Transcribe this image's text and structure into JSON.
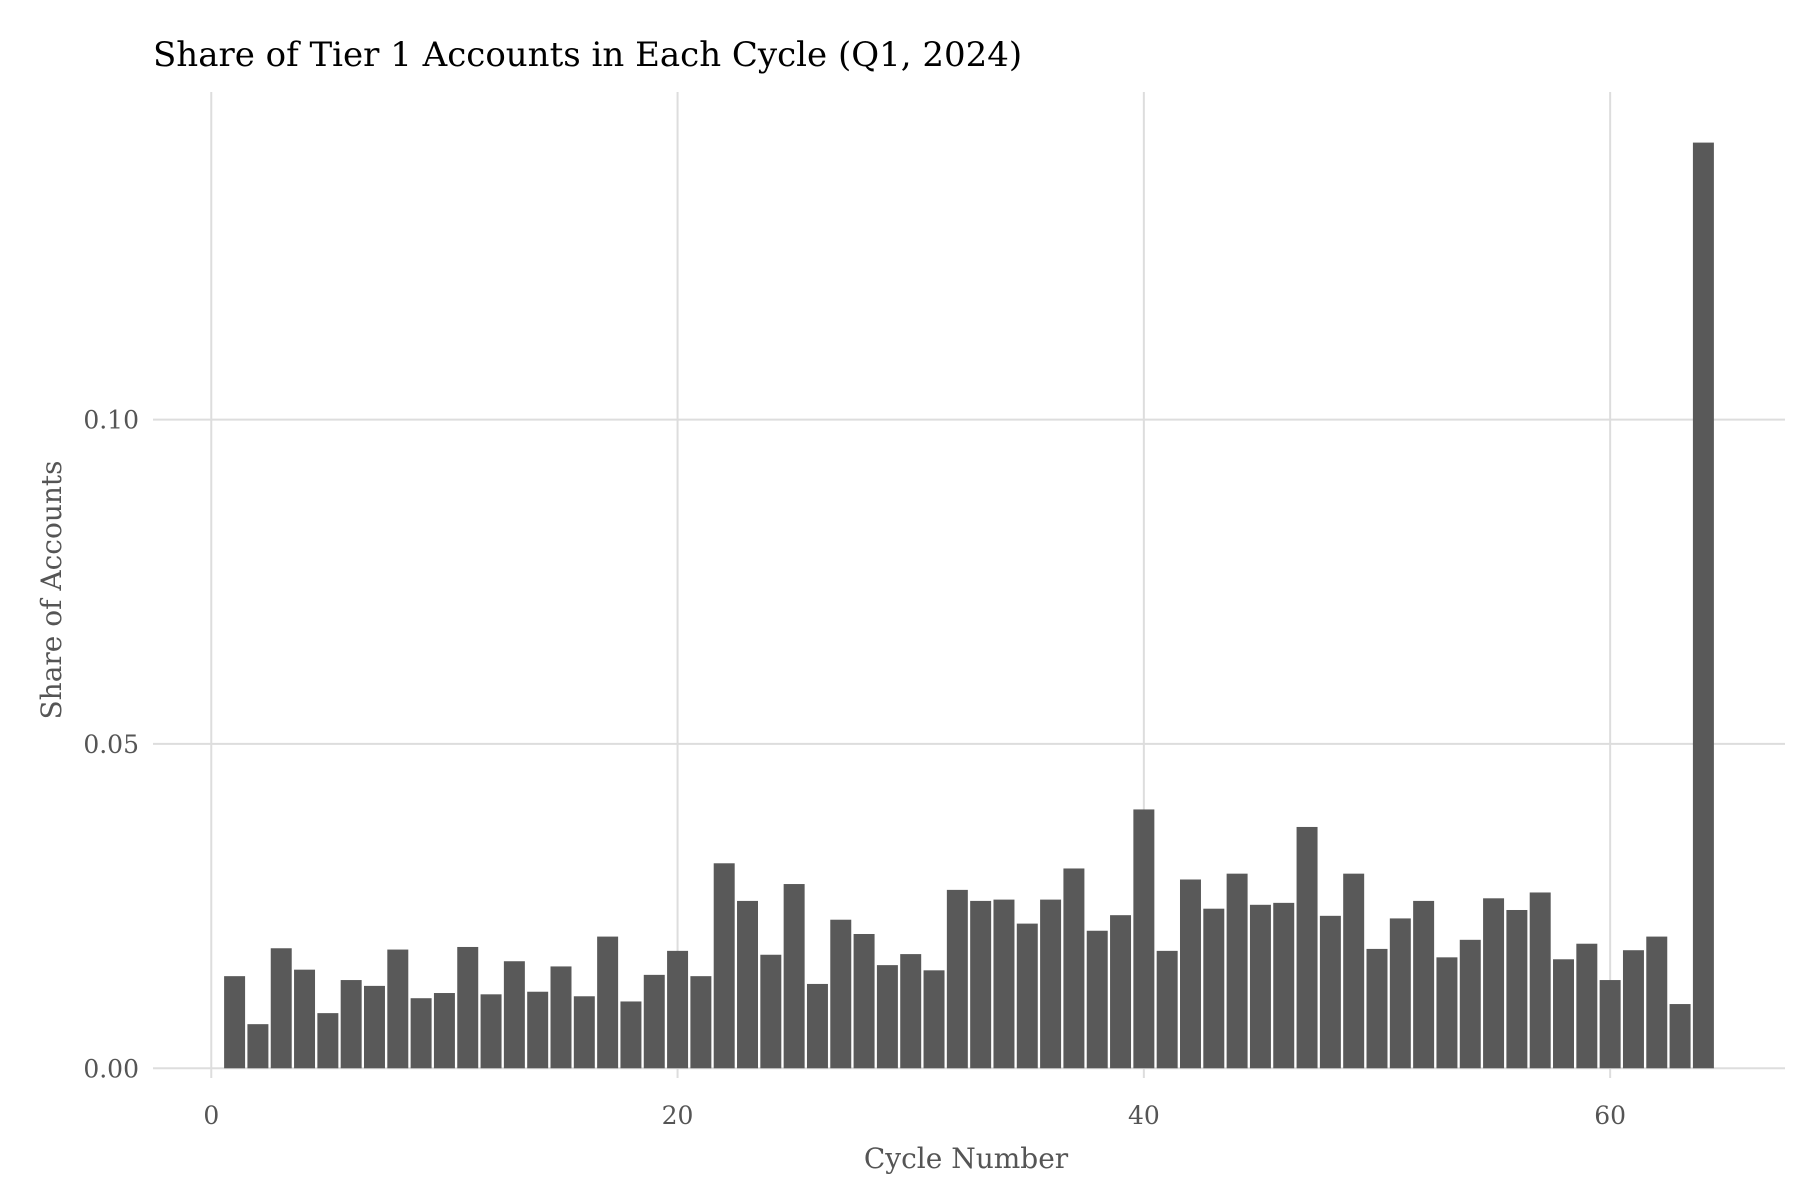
{
  "chart_data": {
    "type": "bar",
    "title": "Share of Tier 1 Accounts in Each Cycle (Q1, 2024)",
    "xlabel": "Cycle Number",
    "ylabel": "Share of Accounts",
    "x_ticks": [
      "0",
      "20",
      "40",
      "60"
    ],
    "y_ticks": [
      "0.00",
      "0.05",
      "0.10"
    ],
    "xlim": [
      -2.5,
      67.5
    ],
    "ylim": [
      -0.0015,
      0.1505
    ],
    "grid": true,
    "bar_color": "#595959",
    "grid_color": "#dddddd",
    "x": [
      1,
      2,
      3,
      4,
      5,
      6,
      7,
      8,
      9,
      10,
      11,
      12,
      13,
      14,
      15,
      16,
      17,
      18,
      19,
      20,
      21,
      22,
      23,
      24,
      25,
      26,
      27,
      28,
      29,
      30,
      31,
      32,
      33,
      34,
      35,
      36,
      37,
      38,
      39,
      40,
      41,
      42,
      43,
      44,
      45,
      46,
      47,
      48,
      49,
      50,
      51,
      52,
      53,
      54,
      55,
      56,
      57,
      58,
      59,
      60,
      61,
      62,
      63,
      64
    ],
    "values": [
      0.0142,
      0.0068,
      0.0185,
      0.0152,
      0.0085,
      0.0136,
      0.0127,
      0.0183,
      0.0108,
      0.0116,
      0.0187,
      0.0114,
      0.0165,
      0.0118,
      0.0157,
      0.0111,
      0.0203,
      0.0103,
      0.0144,
      0.0181,
      0.0142,
      0.0316,
      0.0258,
      0.0175,
      0.0284,
      0.013,
      0.0229,
      0.0207,
      0.0159,
      0.0176,
      0.0151,
      0.0275,
      0.0258,
      0.026,
      0.0223,
      0.026,
      0.0308,
      0.0212,
      0.0236,
      0.0399,
      0.0181,
      0.0291,
      0.0246,
      0.03,
      0.0252,
      0.0255,
      0.0372,
      0.0235,
      0.03,
      0.0184,
      0.0231,
      0.0258,
      0.0171,
      0.0198,
      0.0262,
      0.0244,
      0.0271,
      0.0168,
      0.0192,
      0.0136,
      0.0182,
      0.0203,
      0.0099,
      0.1427
    ]
  }
}
